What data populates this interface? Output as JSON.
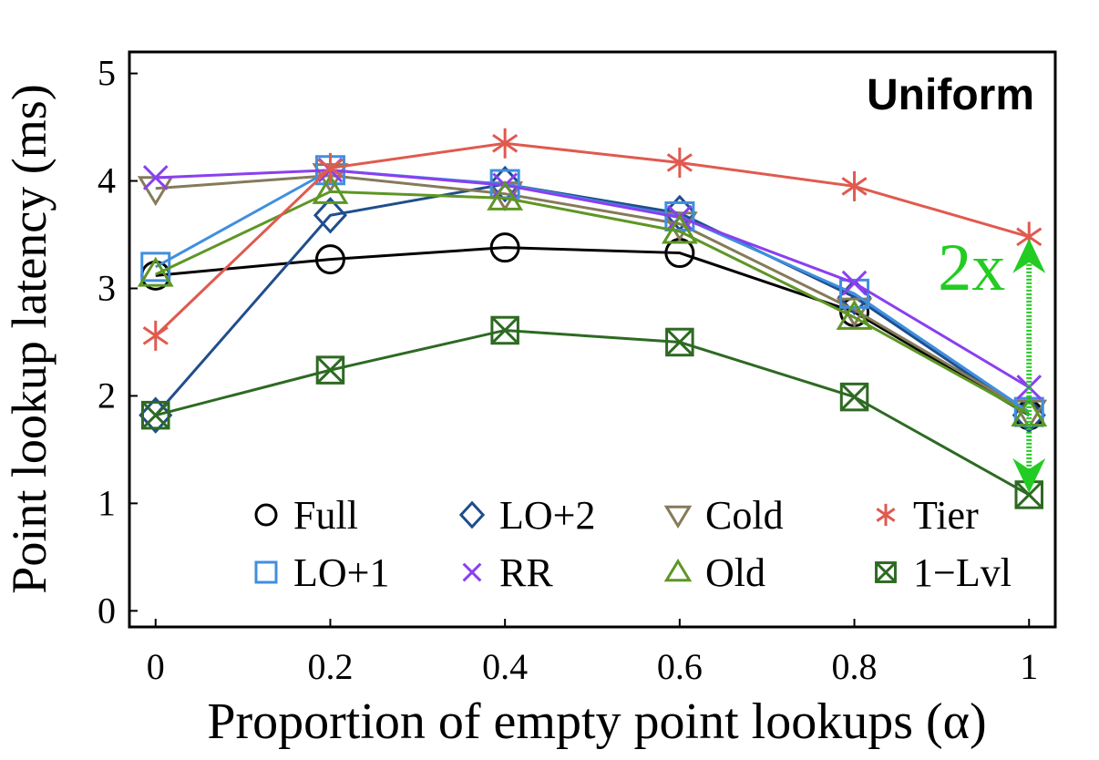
{
  "chart_data": {
    "type": "line",
    "title": "Uniform",
    "xlabel": "Proportion of empty point lookups (α)",
    "ylabel": "Point lookup latency (ms)",
    "x": [
      0,
      0.2,
      0.4,
      0.6,
      0.8,
      1
    ],
    "x_ticks": [
      "0",
      "0.2",
      "0.4",
      "0.6",
      "0.8",
      "1"
    ],
    "y_ticks": [
      "0",
      "1",
      "2",
      "3",
      "4",
      "5"
    ],
    "xlim": [
      -0.03,
      1.03
    ],
    "ylim": [
      -0.15,
      5.2
    ],
    "grid": false,
    "legend_position": "bottom",
    "series": [
      {
        "name": "Full",
        "marker": "circle",
        "color": "#000000",
        "values": [
          3.12,
          3.27,
          3.38,
          3.33,
          2.78,
          1.82
        ]
      },
      {
        "name": "LO+2",
        "marker": "diamond",
        "color": "#1f4e8c",
        "values": [
          1.82,
          3.68,
          3.97,
          3.7,
          2.92,
          1.82
        ]
      },
      {
        "name": "Cold",
        "marker": "triangle-down",
        "color": "#857b5a",
        "values": [
          3.93,
          4.05,
          3.88,
          3.6,
          2.8,
          1.85
        ]
      },
      {
        "name": "Tier",
        "marker": "asterisk",
        "color": "#e05a4f",
        "values": [
          2.56,
          4.12,
          4.35,
          4.17,
          3.95,
          3.48
        ]
      },
      {
        "name": "LO+1",
        "marker": "square",
        "color": "#3f8fdf",
        "values": [
          3.2,
          4.1,
          3.97,
          3.67,
          2.95,
          1.85
        ]
      },
      {
        "name": "RR",
        "marker": "x",
        "color": "#8a3ff0",
        "values": [
          4.03,
          4.1,
          3.96,
          3.66,
          3.05,
          2.08
        ]
      },
      {
        "name": "Old",
        "marker": "triangle-up",
        "color": "#5e9624",
        "values": [
          3.13,
          3.9,
          3.84,
          3.53,
          2.73,
          1.83
        ]
      },
      {
        "name": "1−Lvl",
        "marker": "boxed-x",
        "color": "#2d6a22",
        "values": [
          1.82,
          2.24,
          2.61,
          2.5,
          1.99,
          1.08
        ]
      }
    ],
    "annotations": [
      {
        "text": "2x",
        "color": "#22cc22",
        "x": 1,
        "from": 1.08,
        "to": 3.48
      }
    ]
  }
}
